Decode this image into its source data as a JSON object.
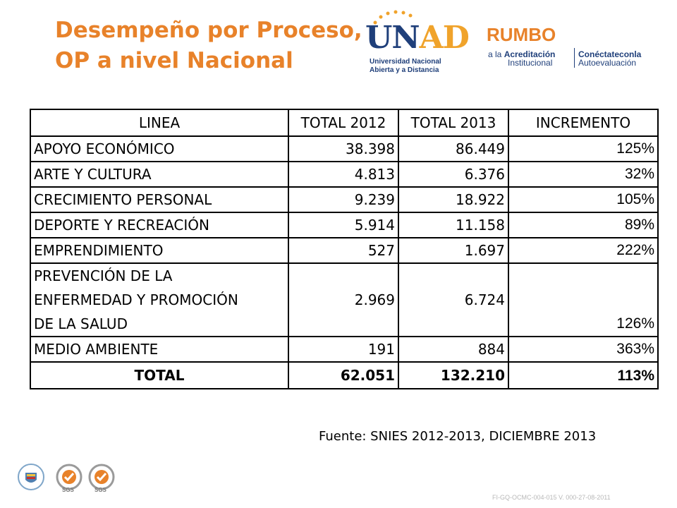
{
  "title": {
    "line1": "Desempeño por Proceso,",
    "line2": "OP a nivel Nacional"
  },
  "logos": {
    "unad": {
      "word_u": "U",
      "word_n": "N",
      "word_ad": "AD",
      "sub1": "Universidad Nacional",
      "sub2": "Abierta y a Distancia"
    },
    "rumbo": {
      "word": "RUMBO",
      "line1_a": "a la ",
      "line1_b": "Acreditación",
      "line2": "Institucional",
      "right1": "Conéctateconla",
      "right2": "Autoevaluación"
    }
  },
  "table": {
    "headers": [
      "LINEA",
      "TOTAL 2012",
      "TOTAL 2013",
      "INCREMENTO"
    ],
    "rows": [
      {
        "linea": "APOYO ECONÓMICO",
        "t2012": "38.398",
        "t2013": "86.449",
        "inc": "125%"
      },
      {
        "linea": "ARTE Y CULTURA",
        "t2012": "4.813",
        "t2013": "6.376",
        "inc": "32%"
      },
      {
        "linea": "CRECIMIENTO PERSONAL",
        "t2012": "9.239",
        "t2013": "18.922",
        "inc": "105%"
      },
      {
        "linea": "DEPORTE Y RECREACIÓN",
        "t2012": "5.914",
        "t2013": "11.158",
        "inc": "89%"
      },
      {
        "linea": "EMPRENDIMIENTO",
        "t2012": "527",
        "t2013": "1.697",
        "inc": "222%"
      },
      {
        "linea_lines": [
          "PREVENCIÓN DE LA",
          "ENFERMEDAD Y PROMOCIÓN",
          "DE LA SALUD"
        ],
        "t2012": "2.969",
        "t2013": "6.724",
        "inc": "126%"
      },
      {
        "linea": "MEDIO AMBIENTE",
        "t2012": "191",
        "t2013": "884",
        "inc": "363%"
      }
    ],
    "total": {
      "linea": "TOTAL",
      "t2012": "62.051",
      "t2013": "132.210",
      "inc": "113%"
    }
  },
  "source": "Fuente: SNIES 2012-2013, DICIEMBRE 2013",
  "footer": {
    "sgs1": "SGS",
    "sgs2": "SGS",
    "code": "FI-GQ-OCMC-004-015 V. 000-27-08-2011"
  },
  "colors": {
    "title": "#E8822A",
    "navy": "#1F3F7A",
    "gold": "#F0A32B"
  }
}
